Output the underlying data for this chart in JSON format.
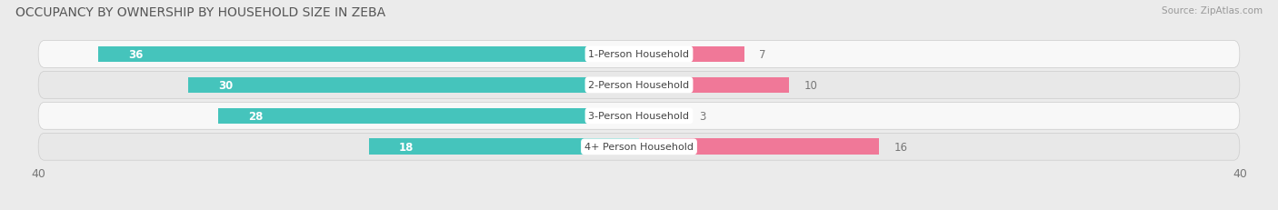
{
  "title": "OCCUPANCY BY OWNERSHIP BY HOUSEHOLD SIZE IN ZEBA",
  "source": "Source: ZipAtlas.com",
  "categories": [
    "1-Person Household",
    "2-Person Household",
    "3-Person Household",
    "4+ Person Household"
  ],
  "owner_values": [
    36,
    30,
    28,
    18
  ],
  "renter_values": [
    7,
    10,
    3,
    16
  ],
  "owner_color": "#45C4BC",
  "renter_color": "#F07898",
  "label_color_owner": "#ffffff",
  "label_color_outside": "#777777",
  "axis_max": 40,
  "bar_height": 0.52,
  "background_color": "#ebebeb",
  "row_bg_light": "#f8f8f8",
  "row_bg_dark": "#e8e8e8",
  "title_fontsize": 10,
  "label_fontsize": 8.5,
  "tick_fontsize": 9,
  "category_fontsize": 8
}
